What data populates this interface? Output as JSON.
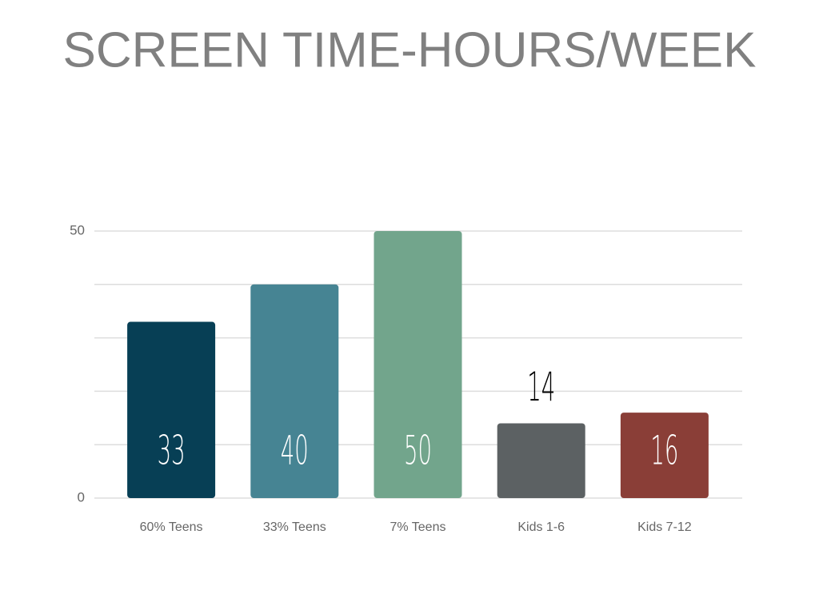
{
  "chart_data": {
    "type": "bar",
    "title": "SCREEN TIME-HOURS/WEEK",
    "categories": [
      "60% Teens",
      "33% Teens",
      "7% Teens",
      "Kids 1-6",
      "Kids 7-12"
    ],
    "values": [
      33,
      40,
      50,
      14,
      16
    ],
    "colors": [
      "#073f55",
      "#468493",
      "#72a58c",
      "#5c6163",
      "#8a3e37"
    ],
    "ylim": [
      0,
      50
    ],
    "yticks": [
      0,
      50
    ],
    "grid": true,
    "grid_lines": [
      0,
      10,
      20,
      30,
      40,
      50
    ]
  }
}
